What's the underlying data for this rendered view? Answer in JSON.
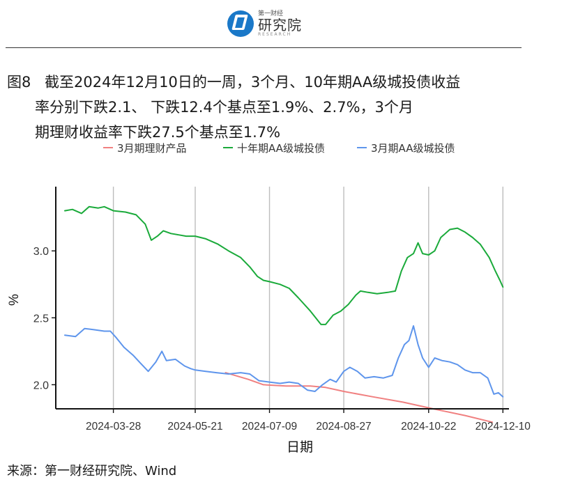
{
  "logo": {
    "sub": "第一财经",
    "main": "研究院",
    "en": "RESEARCH"
  },
  "title": {
    "fig_label": "图8",
    "line1": "截至2024年12月10日的一周，3个月、10年期AA级城投债收益",
    "line2": "率分别下跌2.1、 下跌12.4个基点至1.9%、2.7%，3个月",
    "line3": "期理财收益率下跌27.5个基点至1.7%"
  },
  "source": "来源：第一财经研究院、Wind",
  "chart_data": {
    "type": "line",
    "xlabel": "日期",
    "ylabel": "%",
    "ylim": [
      1.82,
      3.48
    ],
    "xlim": [
      "2024-02-19",
      "2024-12-14"
    ],
    "yticks": [
      2.0,
      2.5,
      3.0
    ],
    "ytick_labels": [
      "2.0",
      "2.5",
      "3.0"
    ],
    "xticks": [
      "2024-03-28",
      "2024-05-21",
      "2024-07-09",
      "2024-08-27",
      "2024-10-22",
      "2024-12-10"
    ],
    "grid": "vertical",
    "legend_position": "top",
    "series": [
      {
        "name": "3月期理财产品",
        "color": "#f08080",
        "points": [
          [
            "2024-06-10",
            2.09
          ],
          [
            "2024-06-25",
            2.04
          ],
          [
            "2024-07-05",
            2.0
          ],
          [
            "2024-07-20",
            1.99
          ],
          [
            "2024-08-05",
            1.99
          ],
          [
            "2024-08-15",
            1.98
          ],
          [
            "2024-08-27",
            1.95
          ],
          [
            "2024-09-15",
            1.91
          ],
          [
            "2024-10-05",
            1.87
          ],
          [
            "2024-10-25",
            1.82
          ],
          [
            "2024-11-15",
            1.77
          ],
          [
            "2024-12-03",
            1.72
          ]
        ]
      },
      {
        "name": "十年期AA级城投债",
        "color": "#1aaa3a",
        "points": [
          [
            "2024-02-25",
            3.3
          ],
          [
            "2024-03-01",
            3.31
          ],
          [
            "2024-03-07",
            3.28
          ],
          [
            "2024-03-12",
            3.33
          ],
          [
            "2024-03-18",
            3.32
          ],
          [
            "2024-03-22",
            3.33
          ],
          [
            "2024-03-28",
            3.3
          ],
          [
            "2024-04-05",
            3.29
          ],
          [
            "2024-04-12",
            3.27
          ],
          [
            "2024-04-18",
            3.2
          ],
          [
            "2024-04-22",
            3.08
          ],
          [
            "2024-04-26",
            3.11
          ],
          [
            "2024-04-30",
            3.15
          ],
          [
            "2024-05-05",
            3.13
          ],
          [
            "2024-05-10",
            3.12
          ],
          [
            "2024-05-15",
            3.11
          ],
          [
            "2024-05-21",
            3.11
          ],
          [
            "2024-05-28",
            3.09
          ],
          [
            "2024-06-05",
            3.05
          ],
          [
            "2024-06-12",
            3.0
          ],
          [
            "2024-06-20",
            2.95
          ],
          [
            "2024-06-26",
            2.88
          ],
          [
            "2024-07-01",
            2.81
          ],
          [
            "2024-07-05",
            2.78
          ],
          [
            "2024-07-09",
            2.77
          ],
          [
            "2024-07-16",
            2.75
          ],
          [
            "2024-07-22",
            2.72
          ],
          [
            "2024-07-28",
            2.65
          ],
          [
            "2024-08-05",
            2.55
          ],
          [
            "2024-08-12",
            2.45
          ],
          [
            "2024-08-15",
            2.45
          ],
          [
            "2024-08-20",
            2.52
          ],
          [
            "2024-08-25",
            2.55
          ],
          [
            "2024-08-30",
            2.6
          ],
          [
            "2024-09-04",
            2.67
          ],
          [
            "2024-09-07",
            2.7
          ],
          [
            "2024-09-12",
            2.69
          ],
          [
            "2024-09-18",
            2.68
          ],
          [
            "2024-09-25",
            2.69
          ],
          [
            "2024-09-30",
            2.7
          ],
          [
            "2024-10-04",
            2.85
          ],
          [
            "2024-10-08",
            2.95
          ],
          [
            "2024-10-12",
            2.98
          ],
          [
            "2024-10-15",
            3.06
          ],
          [
            "2024-10-18",
            2.98
          ],
          [
            "2024-10-22",
            2.97
          ],
          [
            "2024-10-26",
            3.0
          ],
          [
            "2024-10-30",
            3.1
          ],
          [
            "2024-11-05",
            3.16
          ],
          [
            "2024-11-10",
            3.17
          ],
          [
            "2024-11-15",
            3.14
          ],
          [
            "2024-11-20",
            3.1
          ],
          [
            "2024-11-25",
            3.05
          ],
          [
            "2024-12-01",
            2.95
          ],
          [
            "2024-12-05",
            2.85
          ],
          [
            "2024-12-08",
            2.78
          ],
          [
            "2024-12-10",
            2.73
          ]
        ]
      },
      {
        "name": "3月期AA级城投债",
        "color": "#5e95ec",
        "points": [
          [
            "2024-02-25",
            2.37
          ],
          [
            "2024-03-03",
            2.36
          ],
          [
            "2024-03-09",
            2.42
          ],
          [
            "2024-03-16",
            2.41
          ],
          [
            "2024-03-22",
            2.4
          ],
          [
            "2024-03-26",
            2.4
          ],
          [
            "2024-03-30",
            2.35
          ],
          [
            "2024-04-04",
            2.28
          ],
          [
            "2024-04-10",
            2.22
          ],
          [
            "2024-04-15",
            2.16
          ],
          [
            "2024-04-20",
            2.1
          ],
          [
            "2024-04-25",
            2.17
          ],
          [
            "2024-04-29",
            2.25
          ],
          [
            "2024-05-02",
            2.18
          ],
          [
            "2024-05-08",
            2.19
          ],
          [
            "2024-05-14",
            2.14
          ],
          [
            "2024-05-18",
            2.12
          ],
          [
            "2024-05-21",
            2.11
          ],
          [
            "2024-05-28",
            2.1
          ],
          [
            "2024-06-04",
            2.09
          ],
          [
            "2024-06-12",
            2.08
          ],
          [
            "2024-06-20",
            2.09
          ],
          [
            "2024-06-26",
            2.08
          ],
          [
            "2024-07-02",
            2.03
          ],
          [
            "2024-07-09",
            2.02
          ],
          [
            "2024-07-16",
            2.01
          ],
          [
            "2024-07-22",
            2.02
          ],
          [
            "2024-07-28",
            2.01
          ],
          [
            "2024-08-03",
            1.96
          ],
          [
            "2024-08-08",
            1.95
          ],
          [
            "2024-08-13",
            2.0
          ],
          [
            "2024-08-18",
            2.04
          ],
          [
            "2024-08-22",
            2.02
          ],
          [
            "2024-08-27",
            2.1
          ],
          [
            "2024-08-31",
            2.13
          ],
          [
            "2024-09-05",
            2.1
          ],
          [
            "2024-09-10",
            2.05
          ],
          [
            "2024-09-16",
            2.06
          ],
          [
            "2024-09-22",
            2.05
          ],
          [
            "2024-09-28",
            2.07
          ],
          [
            "2024-10-02",
            2.2
          ],
          [
            "2024-10-06",
            2.3
          ],
          [
            "2024-10-09",
            2.33
          ],
          [
            "2024-10-12",
            2.44
          ],
          [
            "2024-10-15",
            2.3
          ],
          [
            "2024-10-18",
            2.2
          ],
          [
            "2024-10-22",
            2.13
          ],
          [
            "2024-10-26",
            2.2
          ],
          [
            "2024-10-31",
            2.18
          ],
          [
            "2024-11-05",
            2.17
          ],
          [
            "2024-11-10",
            2.15
          ],
          [
            "2024-11-15",
            2.11
          ],
          [
            "2024-11-20",
            2.09
          ],
          [
            "2024-11-25",
            2.09
          ],
          [
            "2024-11-30",
            2.05
          ],
          [
            "2024-12-04",
            1.93
          ],
          [
            "2024-12-07",
            1.94
          ],
          [
            "2024-12-10",
            1.91
          ]
        ]
      }
    ]
  }
}
